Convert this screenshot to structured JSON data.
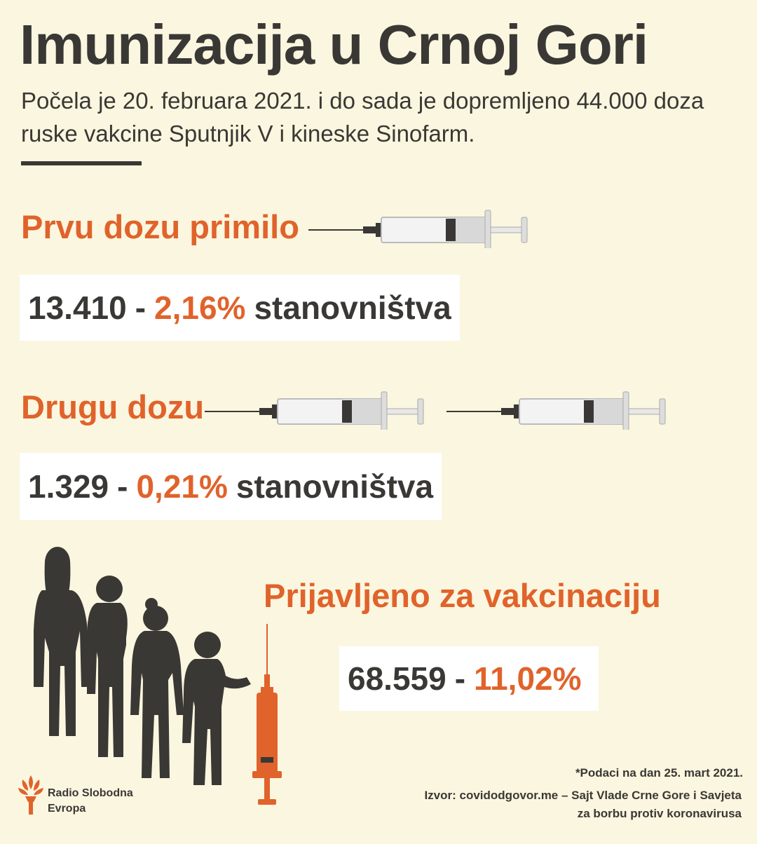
{
  "title": "Imunizacija u Crnoj Gori",
  "subtitle": "Počela je 20. februara 2021. i do sada je dopremljeno 44.000 doza ruske vakcine Sputnjik V i kineske Sinofarm.",
  "first_dose": {
    "heading": "Prvu dozu primilo",
    "count": "13.410",
    "percent": "2,16%",
    "suffix": "stanovništva"
  },
  "second_dose": {
    "heading": "Drugu dozu",
    "count": "1.329",
    "percent": "0,21%",
    "suffix": "stanovništva"
  },
  "registered": {
    "heading": "Prijavljeno za vakcinaciju",
    "count": "68.559",
    "percent": "11,02%"
  },
  "footnote": "*Podaci na dan 25. mart 2021.",
  "source_line1": "Izvor: covidodgovor.me – Sajt Vlade Crne Gore i Savjeta",
  "source_line2": "za borbu protiv koronavirusa",
  "logo": {
    "line1": "Radio Slobodna",
    "line2": "Evropa"
  },
  "colors": {
    "background": "#fbf6df",
    "text": "#3a3835",
    "accent": "#e0632b"
  },
  "icons": [
    "syringe-icon",
    "people-queue-icon",
    "orange-syringe-icon",
    "rse-torch-logo-icon"
  ]
}
